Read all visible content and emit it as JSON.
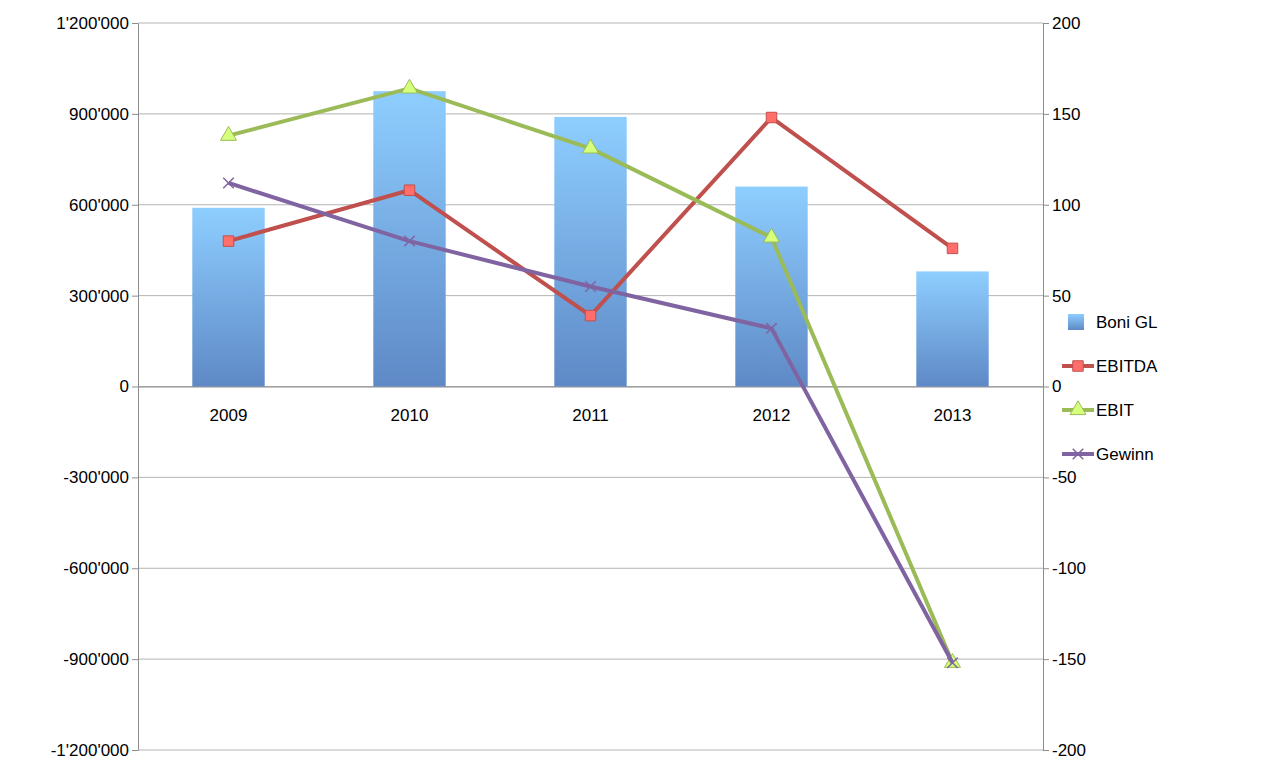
{
  "chart_data": {
    "type": "bar",
    "categories": [
      "2009",
      "2010",
      "2011",
      "2012",
      "2013"
    ],
    "ylim": [
      -1200000,
      1200000
    ],
    "yticks": [
      {
        "value": -1200000,
        "label": "-1'200'000"
      },
      {
        "value": -900000,
        "label": "-900'000"
      },
      {
        "value": -600000,
        "label": "-600'000"
      },
      {
        "value": -300000,
        "label": "-300'000"
      },
      0,
      {
        "value": 300000,
        "label": "300'000"
      },
      {
        "value": 600000,
        "label": "600'000"
      },
      {
        "value": 900000,
        "label": "900'000"
      },
      {
        "value": 1200000,
        "label": "1'200'000"
      }
    ],
    "y2lim": [
      -200,
      200
    ],
    "y2ticks": [
      -200,
      -150,
      -100,
      -50,
      0,
      50,
      100,
      150,
      200
    ],
    "grid": true,
    "legend": "right",
    "series": [
      {
        "name": "Boni GL",
        "type": "bar",
        "color": "#6b9be0",
        "values": [
          590000,
          975000,
          890000,
          660000,
          380000
        ]
      },
      {
        "name": "EBITDA",
        "type": "line",
        "axis": "y2",
        "color": "#c0504d",
        "marker": "square",
        "values": [
          80,
          108,
          39,
          148,
          76
        ]
      },
      {
        "name": "EBIT",
        "type": "line",
        "axis": "y2",
        "color": "#9bbb59",
        "marker": "triangle",
        "values": [
          138,
          164,
          131,
          82,
          -152
        ]
      },
      {
        "name": "Gewinn",
        "type": "line",
        "axis": "y2",
        "color": "#8064a2",
        "marker": "x",
        "values": [
          112,
          80,
          55,
          32,
          -152
        ]
      }
    ]
  }
}
